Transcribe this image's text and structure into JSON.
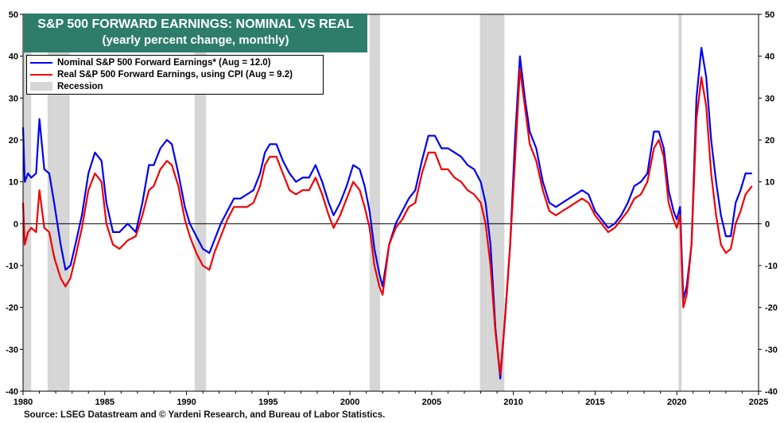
{
  "title": {
    "line1": "S&P 500 FORWARD EARNINGS: NOMINAL VS REAL",
    "line2": "(yearly percent change, monthly)"
  },
  "source": "Source: LSEG Datastream and © Yardeni Research, and Bureau of Labor Statistics.",
  "colors": {
    "background": "#ffffff",
    "title_bg": "#2e7d6b",
    "title_text": "#ffffff",
    "nominal": "#0000ee",
    "real": "#ee0000",
    "recession": "#d6d6d6",
    "zero_line": "#000000"
  },
  "chart_data": {
    "type": "line",
    "xlim": [
      1980,
      2025
    ],
    "ylim": [
      -40,
      50
    ],
    "y_ticks": [
      50,
      40,
      30,
      20,
      10,
      0,
      -10,
      -20,
      -30,
      -40
    ],
    "x_ticks": [
      1980,
      1985,
      1990,
      1995,
      2000,
      2005,
      2010,
      2015,
      2020,
      2025
    ],
    "grid": false,
    "legend_position": "top-left",
    "legend": [
      {
        "label": "Nominal S&P 500 Forward Earnings* (Aug = 12.0)",
        "kind": "line",
        "color": "#0000ee"
      },
      {
        "label": "Real S&P 500 Forward Earnings, using CPI (Aug = 9.2)",
        "kind": "line",
        "color": "#ee0000"
      },
      {
        "label": "Recession",
        "kind": "box",
        "color": "#d6d6d6"
      }
    ],
    "recessions": [
      [
        1980.0,
        1980.5
      ],
      [
        1981.5,
        1982.85
      ],
      [
        1990.5,
        1991.2
      ],
      [
        2001.2,
        2001.85
      ],
      [
        2007.95,
        2009.45
      ],
      [
        2020.1,
        2020.3
      ]
    ],
    "series": [
      {
        "name": "Nominal S&P 500 Forward Earnings* (Aug = 12.0)",
        "color": "#0000ee",
        "x": [
          1980.0,
          1980.1,
          1980.3,
          1980.5,
          1980.8,
          1981.0,
          1981.3,
          1981.6,
          1981.9,
          1982.3,
          1982.6,
          1982.9,
          1983.2,
          1983.6,
          1984.0,
          1984.4,
          1984.8,
          1985.1,
          1985.5,
          1985.9,
          1986.4,
          1986.9,
          1987.3,
          1987.7,
          1988.0,
          1988.4,
          1988.8,
          1989.1,
          1989.5,
          1989.9,
          1990.2,
          1990.6,
          1991.0,
          1991.4,
          1991.7,
          1992.1,
          1992.5,
          1992.9,
          1993.3,
          1993.7,
          1994.1,
          1994.5,
          1994.8,
          1995.1,
          1995.5,
          1995.9,
          1996.3,
          1996.7,
          1997.1,
          1997.5,
          1997.9,
          1998.3,
          1998.7,
          1999.0,
          1999.4,
          1999.8,
          2000.2,
          2000.6,
          2000.9,
          2001.2,
          2001.5,
          2001.8,
          2002.0,
          2002.4,
          2002.8,
          2003.2,
          2003.6,
          2004.0,
          2004.4,
          2004.8,
          2005.2,
          2005.6,
          2006.0,
          2006.4,
          2006.8,
          2007.2,
          2007.6,
          2008.0,
          2008.3,
          2008.6,
          2008.9,
          2009.2,
          2009.5,
          2009.8,
          2010.1,
          2010.4,
          2010.7,
          2011.0,
          2011.4,
          2011.8,
          2012.2,
          2012.6,
          2013.0,
          2013.4,
          2013.8,
          2014.2,
          2014.6,
          2015.0,
          2015.4,
          2015.8,
          2016.2,
          2016.6,
          2017.0,
          2017.4,
          2017.8,
          2018.2,
          2018.6,
          2018.9,
          2019.2,
          2019.5,
          2019.8,
          2020.0,
          2020.2,
          2020.4,
          2020.6,
          2020.9,
          2021.2,
          2021.5,
          2021.8,
          2022.1,
          2022.4,
          2022.7,
          2023.0,
          2023.3,
          2023.6,
          2023.9,
          2024.2,
          2024.6
        ],
        "values": [
          23,
          10,
          12,
          11,
          12,
          25,
          13,
          12,
          5,
          -5,
          -11,
          -10,
          -5,
          2,
          12,
          17,
          15,
          5,
          -2,
          -2,
          0,
          -2,
          5,
          14,
          14,
          18,
          20,
          19,
          12,
          4,
          0,
          -3,
          -6,
          -7,
          -4,
          0,
          3,
          6,
          6,
          7,
          8,
          12,
          17,
          19,
          19,
          15,
          12,
          10,
          11,
          11,
          14,
          10,
          5,
          2,
          5,
          9,
          14,
          13,
          9,
          3,
          -6,
          -12,
          -15,
          -5,
          0,
          3,
          6,
          8,
          15,
          21,
          21,
          18,
          18,
          17,
          16,
          14,
          13,
          10,
          5,
          -5,
          -25,
          -37,
          -22,
          -5,
          20,
          40,
          30,
          22,
          18,
          10,
          5,
          4,
          5,
          6,
          7,
          8,
          7,
          3,
          1,
          -1,
          0,
          2,
          5,
          9,
          10,
          12,
          22,
          22,
          18,
          8,
          3,
          1,
          4,
          -18,
          -15,
          -5,
          30,
          42,
          35,
          20,
          10,
          2,
          -3,
          -3,
          5,
          8,
          12,
          12
        ]
      },
      {
        "name": "Real S&P 500 Forward Earnings, using CPI (Aug = 9.2)",
        "color": "#ee0000",
        "x": [
          1980.0,
          1980.1,
          1980.3,
          1980.5,
          1980.8,
          1981.0,
          1981.3,
          1981.6,
          1981.9,
          1982.3,
          1982.6,
          1982.9,
          1983.2,
          1983.6,
          1984.0,
          1984.4,
          1984.8,
          1985.1,
          1985.5,
          1985.9,
          1986.4,
          1986.9,
          1987.3,
          1987.7,
          1988.0,
          1988.4,
          1988.8,
          1989.1,
          1989.5,
          1989.9,
          1990.2,
          1990.6,
          1991.0,
          1991.4,
          1991.7,
          1992.1,
          1992.5,
          1992.9,
          1993.3,
          1993.7,
          1994.1,
          1994.5,
          1994.8,
          1995.1,
          1995.5,
          1995.9,
          1996.3,
          1996.7,
          1997.1,
          1997.5,
          1997.9,
          1998.3,
          1998.7,
          1999.0,
          1999.4,
          1999.8,
          2000.2,
          2000.6,
          2000.9,
          2001.2,
          2001.5,
          2001.8,
          2002.0,
          2002.4,
          2002.8,
          2003.2,
          2003.6,
          2004.0,
          2004.4,
          2004.8,
          2005.2,
          2005.6,
          2006.0,
          2006.4,
          2006.8,
          2007.2,
          2007.6,
          2008.0,
          2008.3,
          2008.6,
          2008.9,
          2009.2,
          2009.5,
          2009.8,
          2010.1,
          2010.4,
          2010.7,
          2011.0,
          2011.4,
          2011.8,
          2012.2,
          2012.6,
          2013.0,
          2013.4,
          2013.8,
          2014.2,
          2014.6,
          2015.0,
          2015.4,
          2015.8,
          2016.2,
          2016.6,
          2017.0,
          2017.4,
          2017.8,
          2018.2,
          2018.6,
          2018.9,
          2019.2,
          2019.5,
          2019.8,
          2020.0,
          2020.2,
          2020.4,
          2020.6,
          2020.9,
          2021.2,
          2021.5,
          2021.8,
          2022.1,
          2022.4,
          2022.7,
          2023.0,
          2023.3,
          2023.6,
          2023.9,
          2024.2,
          2024.6
        ],
        "values": [
          5,
          -5,
          -2,
          -1,
          -2,
          8,
          -1,
          -2,
          -8,
          -13,
          -15,
          -13,
          -8,
          -1,
          8,
          12,
          10,
          0,
          -5,
          -6,
          -4,
          -3,
          2,
          8,
          9,
          13,
          15,
          14,
          9,
          1,
          -3,
          -7,
          -10,
          -11,
          -7,
          -3,
          1,
          4,
          4,
          4,
          5,
          9,
          14,
          16,
          16,
          12,
          8,
          7,
          8,
          8,
          11,
          7,
          2,
          -1,
          2,
          6,
          10,
          8,
          4,
          -1,
          -10,
          -15,
          -17,
          -5,
          -1,
          1,
          4,
          5,
          12,
          17,
          17,
          13,
          13,
          11,
          10,
          8,
          7,
          5,
          0,
          -10,
          -26,
          -36,
          -22,
          -5,
          15,
          37,
          28,
          19,
          15,
          8,
          3,
          2,
          3,
          4,
          5,
          6,
          5,
          2,
          0,
          -2,
          -1,
          1,
          3,
          6,
          7,
          10,
          18,
          20,
          16,
          5,
          1,
          -1,
          2,
          -20,
          -17,
          -5,
          25,
          35,
          28,
          12,
          2,
          -5,
          -7,
          -6,
          0,
          3,
          7,
          9
        ]
      }
    ]
  }
}
